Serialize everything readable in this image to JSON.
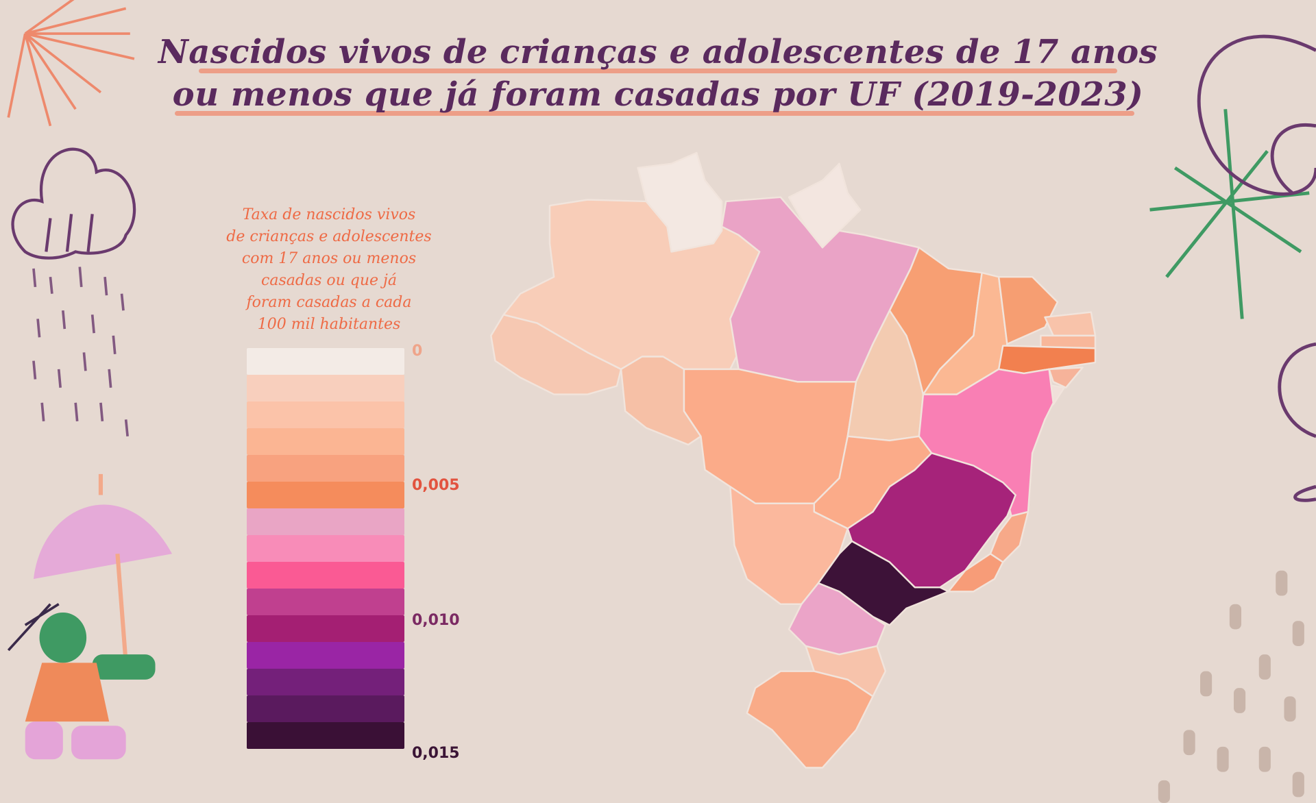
{
  "title": {
    "line1": "Nascidos vivos de crianças e adolescentes de 17 anos",
    "line2": "ou menos que já foram casadas por UF (2019-2023)"
  },
  "legend": {
    "title_lines": [
      "Taxa de nascidos vivos",
      "de crianças e adolescentes",
      "com 17 anos ou menos",
      "casadas ou que já",
      "foram casadas a cada",
      "100 mil habitantes"
    ],
    "ticks": [
      {
        "label": "0",
        "color": "#efa48a"
      },
      {
        "label": "0,005",
        "color": "#e2533f"
      },
      {
        "label": "0,010",
        "color": "#7b2a63"
      },
      {
        "label": "0,015",
        "color": "#3b1536"
      }
    ],
    "colors": [
      "#f3ebe6",
      "#f8cfbd",
      "#fbc3a9",
      "#fbb593",
      "#f8a27f",
      "#f58c5c",
      "#e9a5c5",
      "#f88cb8",
      "#fa5a94",
      "#c0408f",
      "#a41f73",
      "#9a25a5",
      "#74207a",
      "#5a1a5e",
      "#3a1036"
    ]
  }
}
